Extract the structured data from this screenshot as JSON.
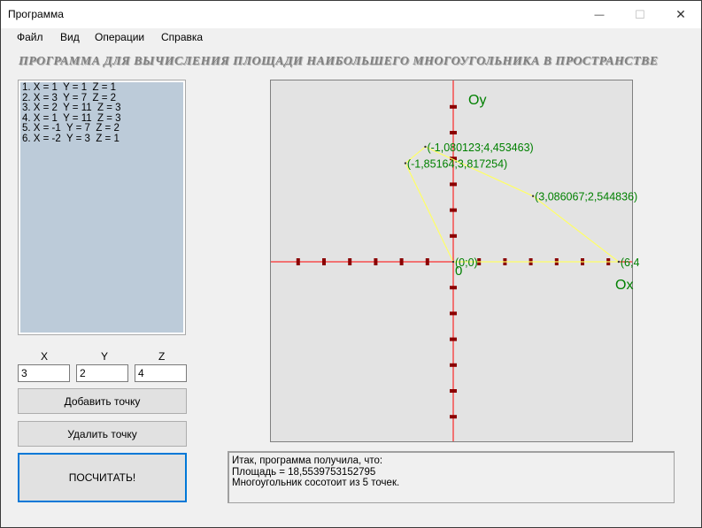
{
  "window": {
    "title": "Программа",
    "controls": {
      "minimize": "—",
      "maximize": "☐",
      "close": "✕"
    }
  },
  "menu": [
    "Файл",
    "Вид",
    "Операции",
    "Справка"
  ],
  "heading": "ПРОГРАММА ДЛЯ ВЫЧИСЛЕНИЯ ПЛОЩАДИ НАИБОЛЬШЕГО МНОГОУГОЛЬНИКА В ПРОСТРАНСТВЕ",
  "points_list": [
    "1. X = 1  Y = 1  Z = 1",
    "2. X = 3  Y = 7  Z = 2",
    "3. X = 2  Y = 11  Z = 3",
    "4. X = 1  Y = 11  Z = 3",
    "5. X = -1  Y = 7  Z = 2",
    "6. X = -2  Y = 3  Z = 1"
  ],
  "inputs": {
    "x_label": "X",
    "y_label": "Y",
    "z_label": "Z",
    "x_value": "3",
    "y_value": "2",
    "z_value": "4"
  },
  "buttons": {
    "add": "Добавить точку",
    "remove": "Удалить точку",
    "calculate": "ПОСЧИТАТЬ!"
  },
  "plot": {
    "axis_y_label": "Oy",
    "axis_x_label": "Ox",
    "origin_label": "0",
    "points": [
      {
        "label": "(0;0)",
        "x": 0,
        "y": 0
      },
      {
        "label": "(-1,080123;4,453463)",
        "x": -1.080123,
        "y": 4.453463
      },
      {
        "label": "(-1,85164;3,817254)",
        "x": -1.85164,
        "y": 3.817254
      },
      {
        "label": "(3,086067;2,544836)",
        "x": 3.086067,
        "y": 2.544836
      },
      {
        "label": "(6,4",
        "x": 6.4,
        "y": 0
      }
    ],
    "colors": {
      "axis": "#ff0000",
      "tick": "#8b0000",
      "polygon": "#ffff66",
      "label": "#008000"
    }
  },
  "output": {
    "line1": "Итак, программа получила, что:",
    "line2": "Площадь = 18,5539753152795",
    "line3": "Многоугольник сосотоит из 5 точек."
  }
}
